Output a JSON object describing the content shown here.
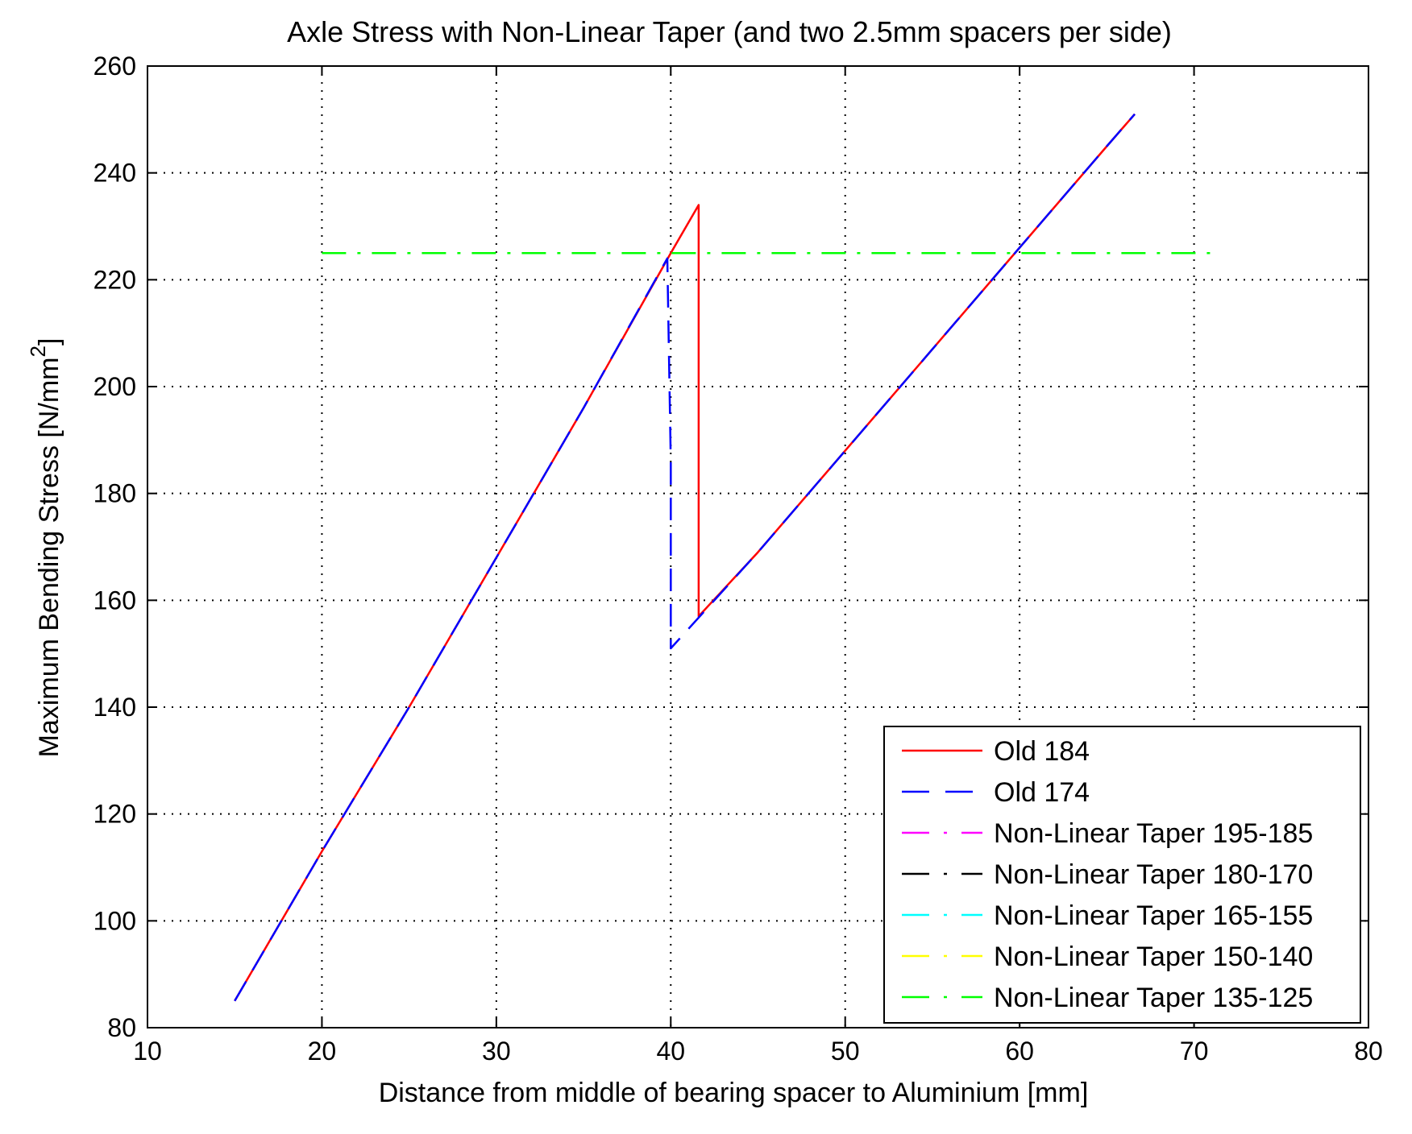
{
  "chart_data": {
    "type": "line",
    "title": "Axle Stress with Non-Linear Taper (and two 2.5mm spacers per side)",
    "xlabel": "Distance from middle of bearing spacer to Aluminium [mm]",
    "ylabel": "Maximum Bending Stress [N/mm",
    "ylabel_superscript": "2",
    "ylabel_suffix": "]",
    "xlim": [
      10,
      80
    ],
    "ylim": [
      80,
      260
    ],
    "xticks": [
      10,
      20,
      30,
      40,
      50,
      60,
      70,
      80
    ],
    "yticks": [
      80,
      100,
      120,
      140,
      160,
      180,
      200,
      220,
      240,
      260
    ],
    "grid": true,
    "legend_position": "bottom-right",
    "series": [
      {
        "name": "Old 184",
        "color": "#ff0000",
        "dash": "solid",
        "x": [
          15,
          20,
          25,
          30,
          35,
          40,
          41.6,
          41.6,
          45,
          50,
          55,
          60,
          65,
          66.6
        ],
        "y": [
          85,
          113,
          140,
          168,
          196,
          225,
          234,
          157,
          169,
          188,
          207,
          226,
          245,
          251
        ]
      },
      {
        "name": "Old 174",
        "color": "#0000ff",
        "dash": "dash",
        "x": [
          15,
          20,
          25,
          30,
          35,
          39.8,
          40,
          40,
          45,
          50,
          55,
          60,
          65,
          66.6
        ],
        "y": [
          85,
          113,
          140,
          168,
          196,
          224,
          186,
          151,
          169,
          188,
          207,
          226,
          245,
          251
        ]
      },
      {
        "name": "Non-Linear Taper 195-185",
        "color": "#ff00ff",
        "dash": "dashdot",
        "x": [],
        "y": []
      },
      {
        "name": "Non-Linear Taper 180-170",
        "color": "#000000",
        "dash": "dashdot",
        "x": [],
        "y": []
      },
      {
        "name": "Non-Linear Taper 165-155",
        "color": "#00ffff",
        "dash": "dashdot",
        "x": [],
        "y": []
      },
      {
        "name": "Non-Linear Taper 150-140",
        "color": "#ffff00",
        "dash": "dashdot",
        "x": [],
        "y": []
      },
      {
        "name": "Non-Linear Taper 135-125",
        "color": "#00ff00",
        "dash": "dashdot",
        "x": [
          20,
          71.5
        ],
        "y": [
          225,
          225
        ]
      }
    ]
  }
}
